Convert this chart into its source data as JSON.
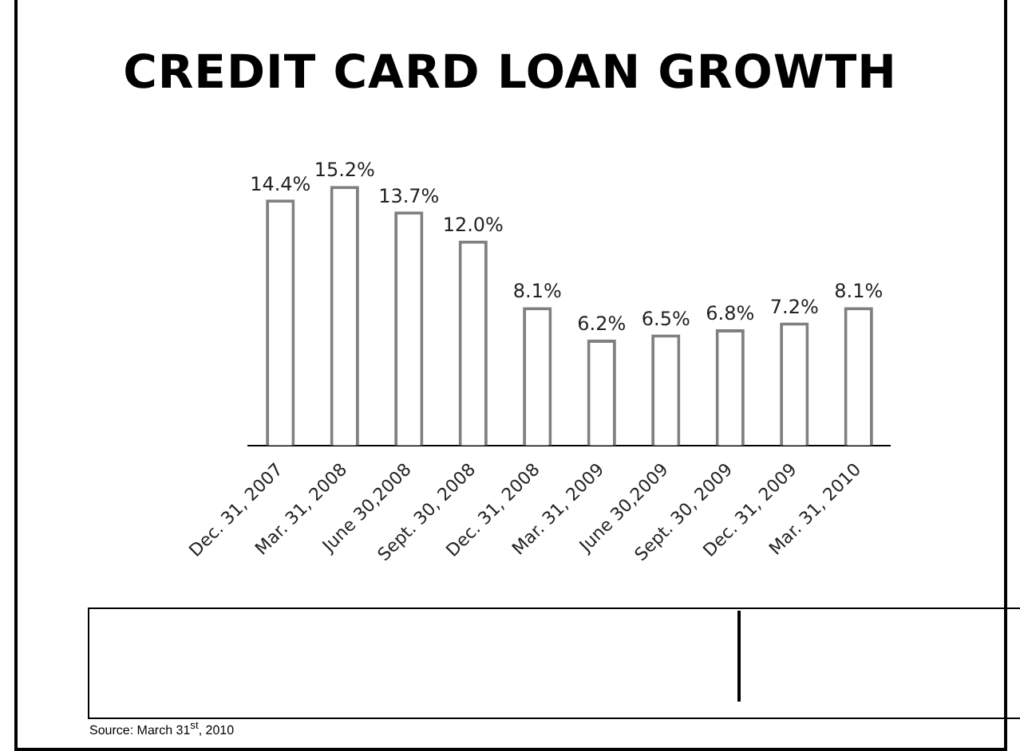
{
  "chart_data": {
    "type": "bar",
    "title": "CREDIT CARD LOAN GROWTH",
    "categories": [
      "Dec. 31, 2007",
      "Mar. 31, 2008",
      "June 30,2008",
      "Sept. 30, 2008",
      "Dec. 31, 2008",
      "Mar. 31, 2009",
      "June 30,2009",
      "Sept. 30, 2009",
      "Dec. 31, 2009",
      "Mar. 31, 2010"
    ],
    "values": [
      14.4,
      15.2,
      13.7,
      12.0,
      8.1,
      6.2,
      6.5,
      6.8,
      7.2,
      8.1
    ],
    "value_labels": [
      "14.4%",
      "15.2%",
      "13.7%",
      "12.0%",
      "8.1%",
      "6.2%",
      "6.5%",
      "6.8%",
      "7.2%",
      "8.1%"
    ],
    "color": "#ffffff",
    "tick_labels": "x",
    "grid": false,
    "legend": false,
    "annotations": [
      "Source: March 31$^{st}$, 2010"
    ]
  }
}
